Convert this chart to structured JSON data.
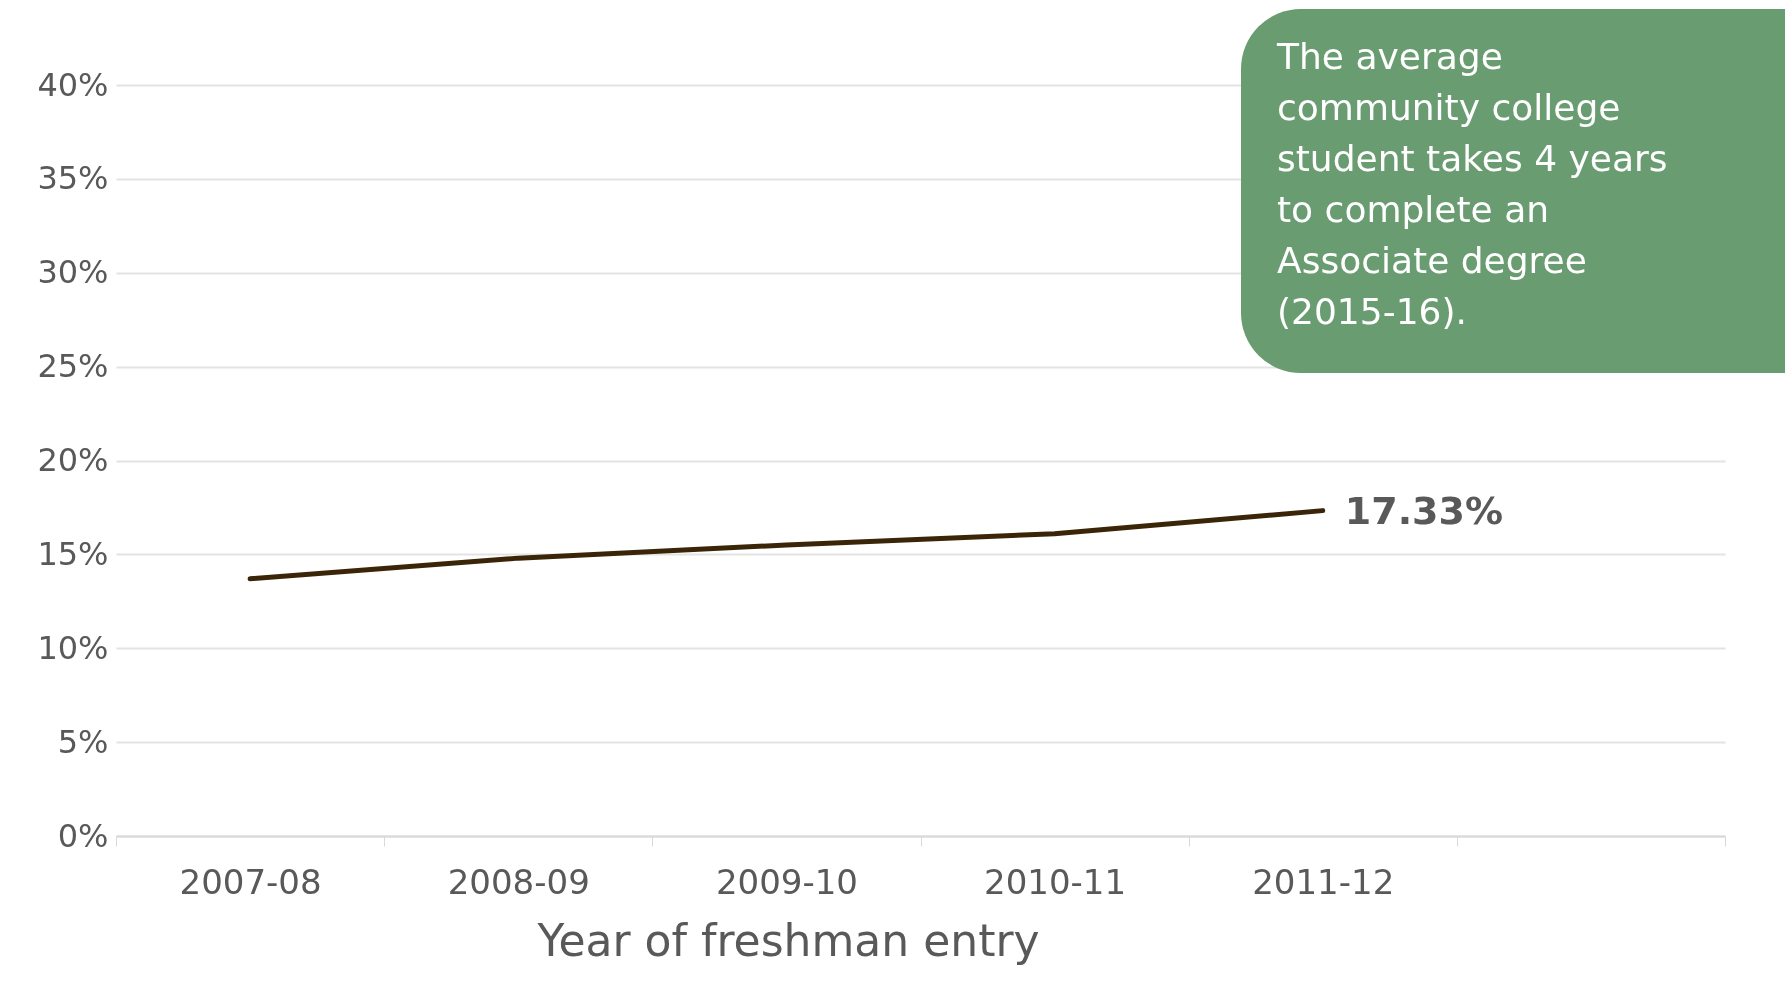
{
  "chart_data": {
    "type": "line",
    "xlabel": "Year of freshman entry",
    "categories": [
      "2007-08",
      "2008-09",
      "2009-10",
      "2010-11",
      "2011-12",
      null
    ],
    "series": [
      {
        "color": "#3b2508",
        "values": [
          13.7,
          14.8,
          15.5,
          16.1,
          17.33,
          null
        ],
        "value_labels": [
          null,
          null,
          null,
          null,
          "17.33%",
          null
        ]
      }
    ],
    "ylim": [
      0,
      40
    ],
    "yticks": [
      {
        "value": 0,
        "label": "0%"
      },
      {
        "value": 5,
        "label": "5%"
      },
      {
        "value": 10,
        "label": "10%"
      },
      {
        "value": 15,
        "label": "15%"
      },
      {
        "value": 20,
        "label": "20%"
      },
      {
        "value": 25,
        "label": "25%"
      },
      {
        "value": 30,
        "label": "30%"
      },
      {
        "value": 35,
        "label": "35%"
      },
      {
        "value": 40,
        "label": "40%"
      }
    ],
    "grid": "y",
    "marker": "none",
    "line_style": "solid",
    "annotations": [
      "The average community college student takes 4 years to complete an Associate degree (2015-16)."
    ]
  }
}
